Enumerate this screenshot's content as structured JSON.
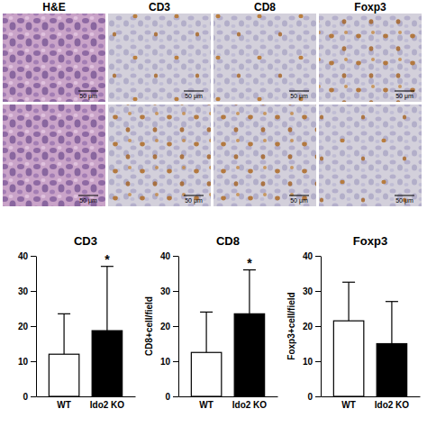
{
  "micrographs": {
    "labels": [
      "H&E",
      "CD3",
      "CD8",
      "Foxp3"
    ],
    "scale_bar": "50 μm"
  },
  "chart_data": [
    {
      "type": "bar",
      "title": "CD3",
      "categories": [
        "WT",
        "Ido2 KO"
      ],
      "values": [
        12,
        18.7
      ],
      "errors": [
        11.5,
        18.3
      ],
      "colors": [
        "#ffffff",
        "#000000"
      ],
      "ylim": [
        0,
        40
      ],
      "yticks": [
        0,
        10,
        20,
        30,
        40
      ],
      "annotations": [
        {
          "text": "*",
          "category": "Ido2 KO"
        }
      ]
    },
    {
      "type": "bar",
      "title": "CD8",
      "y_label": "CD8+cell/field",
      "categories": [
        "WT",
        "Ido2 KO"
      ],
      "values": [
        12.5,
        23.5
      ],
      "errors": [
        11.5,
        12.5
      ],
      "colors": [
        "#ffffff",
        "#000000"
      ],
      "ylim": [
        0,
        40
      ],
      "yticks": [
        0,
        10,
        20,
        30,
        40
      ],
      "annotations": [
        {
          "text": "*",
          "category": "Ido2 KO"
        }
      ]
    },
    {
      "type": "bar",
      "title": "Foxp3",
      "y_label": "Foxp3+cell/field",
      "categories": [
        "WT",
        "Ido2 KO"
      ],
      "values": [
        21.5,
        15
      ],
      "errors": [
        11,
        12
      ],
      "colors": [
        "#ffffff",
        "#000000"
      ],
      "ylim": [
        0,
        40
      ],
      "yticks": [
        0,
        10,
        20,
        30,
        40
      ]
    }
  ]
}
